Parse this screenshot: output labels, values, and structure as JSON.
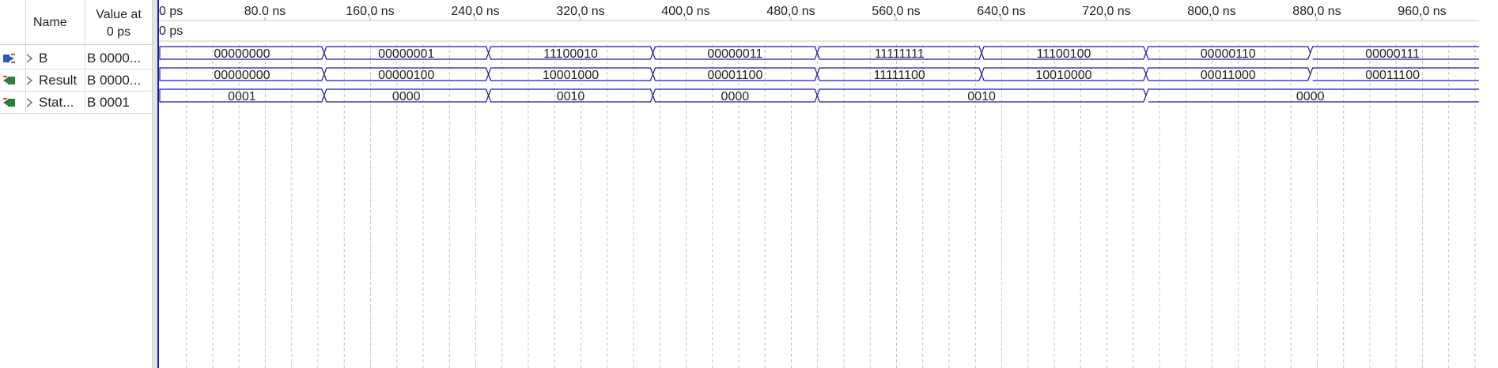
{
  "name_header": "Name",
  "value_header_line1": "Value at",
  "value_header_line2": "0 ps",
  "cursor_label": "0 ps",
  "time_axis": {
    "start_label": "0 ps",
    "step_ns": 80,
    "tick_labels": [
      "80.0 ns",
      "160,0 ns",
      "240,0 ns",
      "320,0 ns",
      "400,0 ns",
      "480,0 ns",
      "560,0 ns",
      "640,0 ns",
      "720,0 ns",
      "800,0 ns",
      "880,0 ns",
      "960,0 ns"
    ]
  },
  "signals": [
    {
      "name": "B",
      "value": "B 0000...",
      "icon": "input-pin-icon",
      "segments": [
        {
          "start": 0,
          "end": 125,
          "value": "00000000"
        },
        {
          "start": 125,
          "end": 250,
          "value": "00000001"
        },
        {
          "start": 250,
          "end": 375,
          "value": "11100010"
        },
        {
          "start": 375,
          "end": 500,
          "value": "00000011"
        },
        {
          "start": 500,
          "end": 625,
          "value": "11111111"
        },
        {
          "start": 625,
          "end": 750,
          "value": "11100100"
        },
        {
          "start": 750,
          "end": 875,
          "value": "00000110"
        },
        {
          "start": 875,
          "end": 1000,
          "value": "00000111"
        }
      ]
    },
    {
      "name": "Result",
      "value": "B 0000...",
      "icon": "output-pin-icon",
      "segments": [
        {
          "start": 0,
          "end": 125,
          "value": "00000000"
        },
        {
          "start": 125,
          "end": 250,
          "value": "00000100"
        },
        {
          "start": 250,
          "end": 375,
          "value": "10001000"
        },
        {
          "start": 375,
          "end": 500,
          "value": "00001100"
        },
        {
          "start": 500,
          "end": 625,
          "value": "11111100"
        },
        {
          "start": 625,
          "end": 750,
          "value": "10010000"
        },
        {
          "start": 750,
          "end": 875,
          "value": "00011000"
        },
        {
          "start": 875,
          "end": 1000,
          "value": "00011100"
        }
      ]
    },
    {
      "name": "Stat...",
      "value": "B 0001",
      "icon": "output-pin-icon",
      "segments": [
        {
          "start": 0,
          "end": 125,
          "value": "0001"
        },
        {
          "start": 125,
          "end": 250,
          "value": "0000"
        },
        {
          "start": 250,
          "end": 375,
          "value": "0010"
        },
        {
          "start": 375,
          "end": 500,
          "value": "0000"
        },
        {
          "start": 500,
          "end": 750,
          "value": "0010"
        },
        {
          "start": 750,
          "end": 1000,
          "value": "0000"
        }
      ]
    }
  ],
  "colors": {
    "wave": "#1a1aa0",
    "grid": "#c4c4c4",
    "text": "#222222",
    "input_pin": "#2a5db0",
    "output_pin": "#2e7d3c",
    "pin_accent": "#d6453d"
  }
}
